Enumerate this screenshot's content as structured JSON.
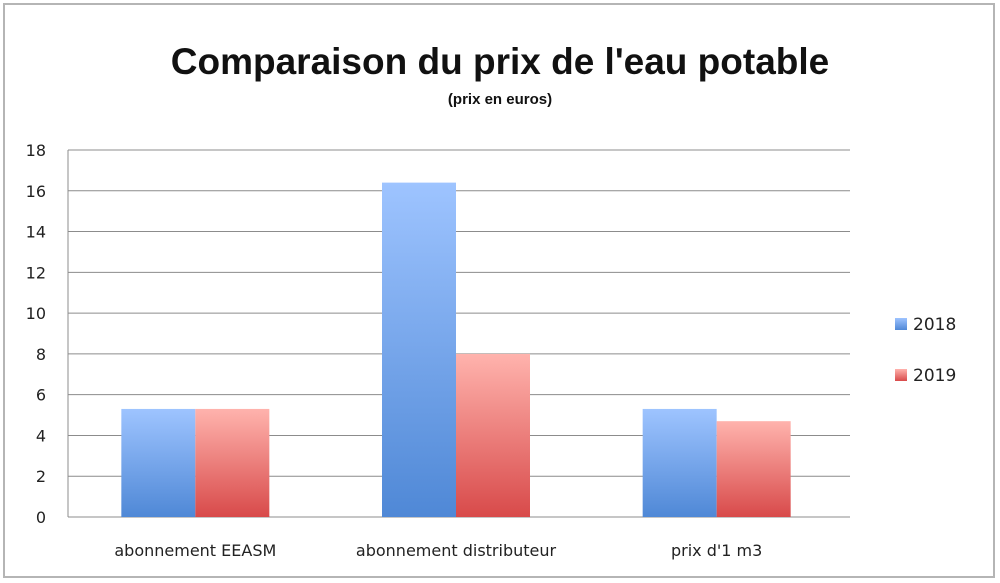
{
  "chart_data": {
    "type": "bar",
    "title": "Comparaison du prix de l'eau potable",
    "subtitle": "(prix en euros)",
    "categories": [
      "abonnement EEASM",
      "abonnement distributeur",
      "prix d'1 m3"
    ],
    "series": [
      {
        "name": "2018",
        "values": [
          5.3,
          16.4,
          5.3
        ],
        "color": "#6a9ee8"
      },
      {
        "name": "2019",
        "values": [
          5.3,
          8.0,
          4.7
        ],
        "color": "#e86a6a"
      }
    ],
    "ylim": [
      0,
      18
    ],
    "yticks": [
      "0",
      "2",
      "4",
      "6",
      "8",
      "10",
      "12",
      "14",
      "16",
      "18"
    ],
    "xlabel": "",
    "ylabel": "",
    "grid": true,
    "legend_position": "right"
  }
}
